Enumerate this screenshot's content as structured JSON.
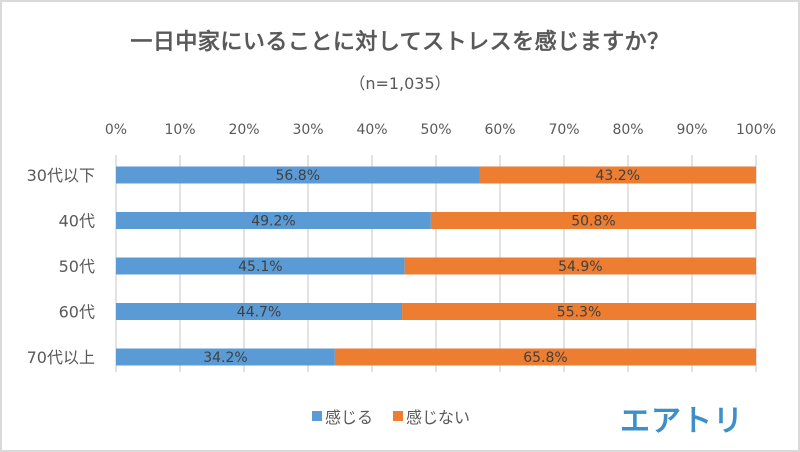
{
  "chart_data": {
    "type": "bar",
    "orientation": "horizontal",
    "stacked": true,
    "title": "一日中家にいることに対してストレスを感じますか？",
    "subtitle": "（n=1,035）",
    "categories": [
      "30代以下",
      "40代",
      "50代",
      "60代",
      "70代以上"
    ],
    "series": [
      {
        "name": "感じる",
        "color": "#5b9bd5",
        "values": [
          56.8,
          49.2,
          45.1,
          44.7,
          34.2
        ],
        "labels": [
          "56.8%",
          "49.2%",
          "45.1%",
          "44.7%",
          "34.2%"
        ]
      },
      {
        "name": "感じない",
        "color": "#ed7d31",
        "values": [
          43.2,
          50.8,
          54.9,
          55.3,
          65.8
        ],
        "labels": [
          "43.2%",
          "50.8%",
          "54.9%",
          "55.3%",
          "65.8%"
        ]
      }
    ],
    "xlim": [
      0,
      100
    ],
    "xticks": [
      "0%",
      "10%",
      "20%",
      "30%",
      "40%",
      "50%",
      "60%",
      "70%",
      "80%",
      "90%",
      "100%"
    ],
    "xlabel": "",
    "ylabel": "",
    "grid": true,
    "legend_position": "bottom"
  },
  "logo": {
    "text": "エアトリ"
  }
}
